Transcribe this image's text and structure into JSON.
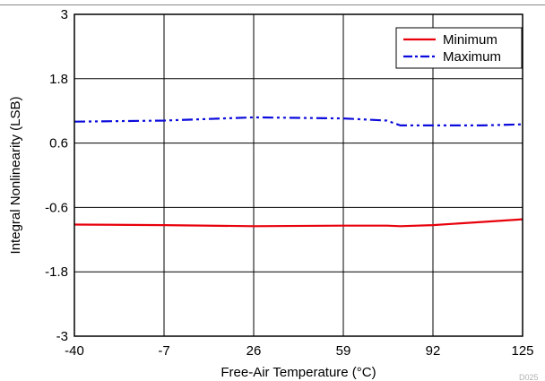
{
  "chart_data": {
    "type": "line",
    "xlabel": "Free-Air Temperature (°C)",
    "ylabel": "Integral Nonlinearity (LSB)",
    "xlim": [
      -40,
      125
    ],
    "ylim": [
      -3,
      3
    ],
    "x_ticks": [
      "-40",
      "-7",
      "26",
      "59",
      "92",
      "125"
    ],
    "y_ticks": [
      "3",
      "1.8",
      "0.6",
      "-0.6",
      "-1.8",
      "-3"
    ],
    "grid": true,
    "legend_position": "top-right",
    "series": [
      {
        "name": "Minimum",
        "color": "#e8000b",
        "style": "solid",
        "x": [
          -40,
          -7,
          26,
          59,
          75,
          80,
          92,
          110,
          125
        ],
        "y": [
          -0.92,
          -0.93,
          -0.95,
          -0.94,
          -0.94,
          -0.95,
          -0.93,
          -0.87,
          -0.82
        ]
      },
      {
        "name": "Maximum",
        "color": "#0a0adc",
        "style": "dashdot",
        "x": [
          -40,
          -7,
          26,
          59,
          75,
          80,
          92,
          110,
          125
        ],
        "y": [
          1.0,
          1.02,
          1.08,
          1.06,
          1.02,
          0.93,
          0.93,
          0.93,
          0.95
        ]
      }
    ],
    "figure_code": "D025"
  }
}
